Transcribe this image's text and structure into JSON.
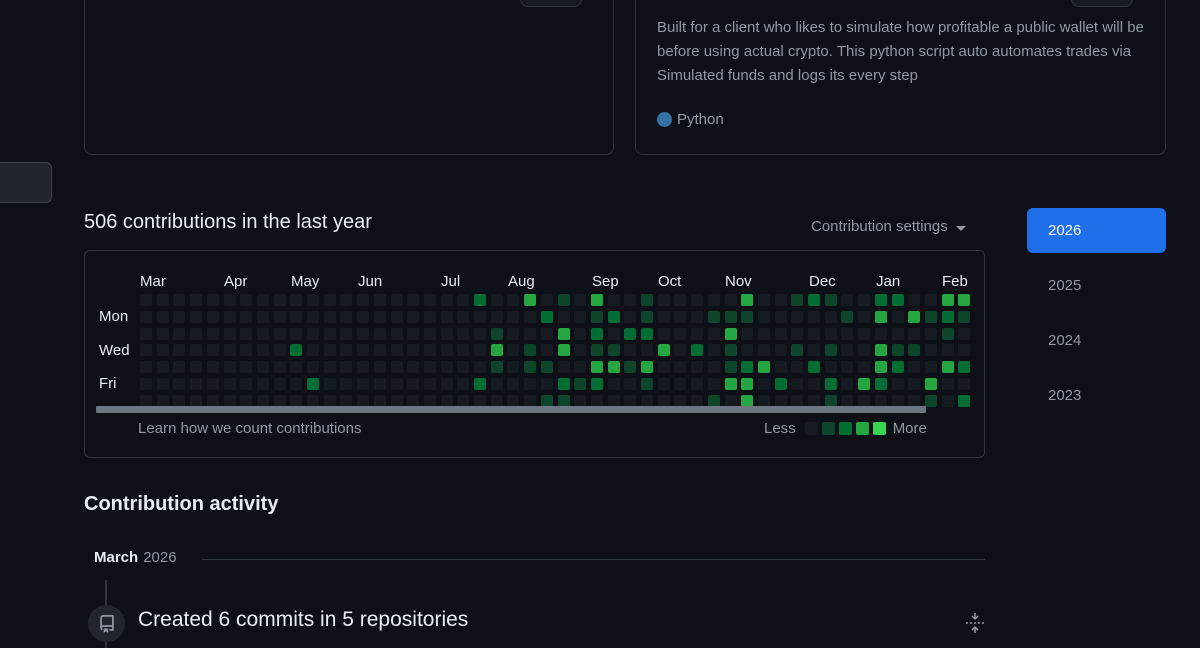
{
  "repo_card": {
    "description": "Built for a client who likes to simulate how profitable a public wallet will be before using actual crypto. This python script auto automates trades via Simulated funds and logs its every step",
    "language": "Python",
    "language_color": "#3572A5"
  },
  "contributions": {
    "heading": "506 contributions in the last year",
    "settings_label": "Contribution settings",
    "months": [
      "Mar",
      "Apr",
      "May",
      "Jun",
      "Jul",
      "Aug",
      "Sep",
      "Oct",
      "Nov",
      "Dec",
      "Jan",
      "Feb"
    ],
    "day_labels": [
      "Mon",
      "Wed",
      "Fri"
    ],
    "learn_link": "Learn how we count contributions",
    "legend_less": "Less",
    "legend_more": "More",
    "level_colors": [
      "#161b22",
      "#0e4429",
      "#006d32",
      "#26a641",
      "#39d353"
    ]
  },
  "years": [
    "2026",
    "2025",
    "2024",
    "2023"
  ],
  "activity": {
    "heading": "Contribution activity",
    "month": "March",
    "year": "2026",
    "commit_summary": "Created 6 commits in 5 repositories"
  },
  "icons": {
    "language_dot": "language-color-dot",
    "settings_caret": "caret-down-icon",
    "commit": "repo-push-icon",
    "collapse": "fold-icon"
  }
}
